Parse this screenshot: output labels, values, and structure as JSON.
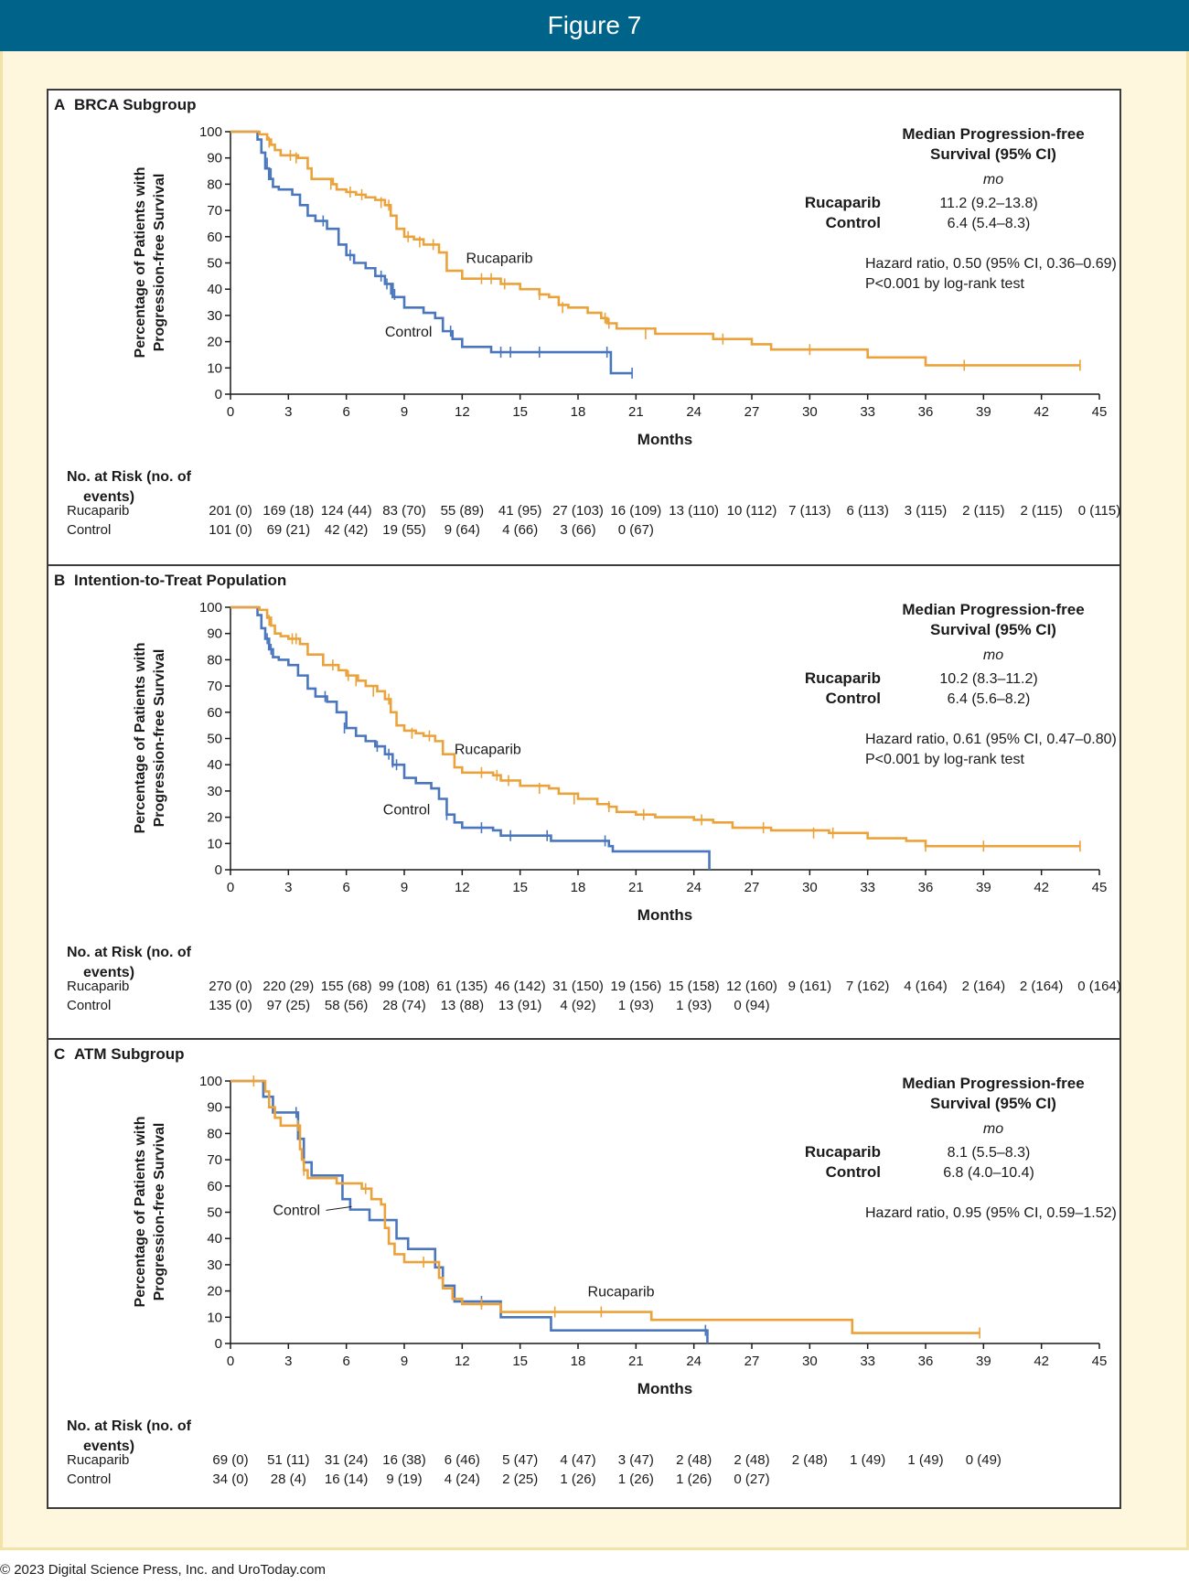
{
  "figure_title": "Figure 7",
  "footer": "© 2023 Digital Science Press, Inc. and UroToday.com",
  "colors": {
    "rucaparib": "#eca23a",
    "control": "#4a76be",
    "header": "#00638a",
    "frame": "#fff6de"
  },
  "shared": {
    "ylabel_line1": "Percentage of Patients with",
    "ylabel_line2": "Progression-free Survival",
    "xlabel": "Months",
    "risk_title_line1": "No. at Risk (no. of",
    "risk_title_line2": "events)",
    "row_rucaparib": "Rucaparib",
    "row_control": "Control",
    "median_title_line1": "Median Progression-free",
    "median_title_line2": "Survival (95% CI)",
    "median_unit": "mo"
  },
  "chart_data": [
    {
      "type": "line",
      "letter": "A",
      "title": "BRCA Subgroup",
      "xlabel": "Months",
      "ylabel": "Percentage of Patients with Progression-free Survival",
      "xlim": [
        0,
        45
      ],
      "ylim": [
        0,
        100
      ],
      "x_ticks": [
        0,
        3,
        6,
        9,
        12,
        15,
        18,
        21,
        24,
        27,
        30,
        33,
        36,
        39,
        42,
        45
      ],
      "y_ticks": [
        0,
        10,
        20,
        30,
        40,
        50,
        60,
        70,
        80,
        90,
        100
      ],
      "median_rucaparib": "11.2 (9.2–13.8)",
      "median_control": "6.4 (5.4–8.3)",
      "hazard": "Hazard ratio, 0.50 (95% CI, 0.36–0.69)",
      "pvalue": "P<0.001 by log-rank test",
      "series": [
        {
          "name": "Rucaparib",
          "label_pos": [
            12.2,
            50
          ],
          "x": [
            0,
            1.5,
            1.9,
            2.1,
            2.3,
            2.6,
            3.0,
            3.5,
            4.0,
            4.2,
            5.0,
            5.3,
            5.5,
            6.0,
            6.5,
            7.0,
            7.5,
            8.0,
            8.3,
            8.6,
            9.0,
            9.5,
            10.0,
            10.8,
            11.2,
            12.0,
            13.5,
            14.0,
            15.0,
            16.0,
            16.5,
            17.0,
            17.5,
            18.5,
            19.2,
            19.5,
            20.0,
            22.0,
            24.0,
            25.0,
            26.0,
            27.0,
            28.0,
            29.0,
            31.0,
            32.0,
            33.0,
            34.0,
            35.0,
            36.0,
            37.0,
            38.0,
            40.0,
            44.0
          ],
          "y": [
            100,
            99,
            97,
            95,
            93,
            91,
            91,
            90,
            86,
            82,
            82,
            80,
            78,
            77,
            76,
            75,
            74,
            72,
            68,
            63,
            60,
            59,
            57,
            54,
            47,
            44,
            44,
            42,
            40,
            38,
            37,
            34,
            33,
            31,
            29,
            27,
            25,
            23,
            23,
            21,
            21,
            19,
            17,
            17,
            17,
            17,
            14,
            14,
            14,
            11,
            11,
            11,
            11,
            11
          ],
          "censor_x": [
            2.0,
            3.1,
            3.4,
            5.2,
            6.2,
            6.8,
            7.8,
            8.2,
            9.2,
            9.8,
            10.5,
            13.0,
            13.5,
            14.2,
            16.0,
            17.2,
            19.4,
            19.6,
            21.5,
            25.5,
            30.0,
            38.0,
            44.0
          ],
          "censor_y": [
            96,
            91,
            90,
            80,
            77,
            76,
            73,
            72,
            60,
            58,
            57,
            44,
            44,
            42,
            38,
            33,
            29,
            27,
            23,
            21,
            17,
            11,
            11
          ],
          "at_risk": [
            "201 (0)",
            "169 (18)",
            "124 (44)",
            "83 (70)",
            "55 (89)",
            "41 (95)",
            "27 (103)",
            "16 (109)",
            "13 (110)",
            "10 (112)",
            "7 (113)",
            "6 (113)",
            "3 (115)",
            "2 (115)",
            "2 (115)",
            "0 (115)"
          ]
        },
        {
          "name": "Control",
          "label_pos": [
            8.0,
            22
          ],
          "x": [
            0,
            1.4,
            1.6,
            1.8,
            2.0,
            2.2,
            2.5,
            3.2,
            3.6,
            4.0,
            4.4,
            5.0,
            5.6,
            6.0,
            6.4,
            7.0,
            7.5,
            8.0,
            8.4,
            9.0,
            10.0,
            10.6,
            11.0,
            11.5,
            12.0,
            13.5,
            19.6,
            19.7,
            20.8
          ],
          "y": [
            100,
            97,
            92,
            86,
            82,
            79,
            78,
            76,
            72,
            68,
            66,
            63,
            57,
            53,
            50,
            48,
            45,
            42,
            37,
            33,
            31,
            29,
            24,
            21,
            18,
            16,
            16,
            8,
            8
          ],
          "censor_x": [
            1.9,
            2.1,
            4.8,
            6.2,
            7.8,
            8.1,
            8.3,
            8.5,
            11.4,
            14.0,
            14.5,
            16.0,
            19.5,
            20.8
          ],
          "censor_y": [
            88,
            84,
            66,
            53,
            45,
            42,
            40,
            38,
            24,
            16,
            16,
            16,
            16,
            8
          ],
          "at_risk": [
            "101 (0)",
            "69 (21)",
            "42 (42)",
            "19 (55)",
            "9 (64)",
            "4 (66)",
            "3 (66)",
            "0 (67)"
          ]
        }
      ]
    },
    {
      "type": "line",
      "letter": "B",
      "title": "Intention-to-Treat Population",
      "xlabel": "Months",
      "ylabel": "Percentage of Patients with Progression-free Survival",
      "xlim": [
        0,
        45
      ],
      "ylim": [
        0,
        100
      ],
      "x_ticks": [
        0,
        3,
        6,
        9,
        12,
        15,
        18,
        21,
        24,
        27,
        30,
        33,
        36,
        39,
        42,
        45
      ],
      "y_ticks": [
        0,
        10,
        20,
        30,
        40,
        50,
        60,
        70,
        80,
        90,
        100
      ],
      "median_rucaparib": "10.2 (8.3–11.2)",
      "median_control": "6.4 (5.6–8.2)",
      "hazard": "Hazard ratio, 0.61 (95% CI, 0.47–0.80)",
      "pvalue": "P<0.001 by log-rank test",
      "series": [
        {
          "name": "Rucaparib",
          "label_pos": [
            11.6,
            44
          ],
          "x": [
            0,
            1.5,
            1.9,
            2.1,
            2.3,
            2.6,
            3.0,
            3.6,
            4.0,
            4.8,
            5.2,
            5.6,
            6.0,
            6.6,
            7.0,
            7.6,
            8.0,
            8.3,
            8.6,
            9.0,
            9.6,
            10.0,
            10.6,
            11.0,
            11.6,
            12.0,
            13.6,
            14.0,
            15.0,
            16.5,
            17.0,
            18.0,
            19.0,
            19.6,
            20.0,
            21.0,
            22.0,
            24.0,
            25.0,
            26.0,
            28.0,
            31.0,
            33.0,
            35.0,
            36.0,
            38.0,
            44.0
          ],
          "y": [
            100,
            99,
            96,
            93,
            90,
            89,
            88,
            86,
            82,
            78,
            78,
            76,
            74,
            72,
            70,
            68,
            65,
            60,
            55,
            53,
            52,
            51,
            49,
            44,
            39,
            37,
            36,
            34,
            32,
            31,
            29,
            27,
            25,
            24,
            22,
            21,
            20,
            19,
            18,
            16,
            15,
            14,
            12,
            11,
            9,
            9,
            9
          ],
          "censor_x": [
            2.0,
            3.2,
            3.4,
            5.3,
            6.1,
            6.5,
            7.4,
            8.2,
            9.4,
            10.3,
            13.0,
            13.8,
            14.4,
            16.0,
            17.8,
            19.6,
            21.4,
            24.4,
            27.6,
            30.2,
            31.2,
            36.0,
            39.0,
            44.0
          ],
          "censor_y": [
            95,
            88,
            88,
            78,
            74,
            72,
            68,
            65,
            52,
            51,
            37,
            36,
            34,
            31,
            27,
            24,
            21,
            19,
            16,
            14,
            14,
            9,
            9,
            9
          ],
          "at_risk": [
            "270 (0)",
            "220 (29)",
            "155 (68)",
            "99 (108)",
            "61 (135)",
            "46 (142)",
            "31 (150)",
            "19 (156)",
            "15 (158)",
            "12 (160)",
            "9 (161)",
            "7 (162)",
            "4 (164)",
            "2 (164)",
            "2 (164)",
            "0 (164)"
          ]
        },
        {
          "name": "Control",
          "label_pos": [
            7.9,
            21
          ],
          "x": [
            0,
            1.4,
            1.6,
            1.8,
            2.0,
            2.2,
            2.5,
            3.0,
            3.5,
            4.0,
            4.4,
            5.0,
            5.5,
            6.0,
            6.5,
            7.0,
            7.5,
            8.0,
            8.4,
            9.0,
            9.6,
            10.4,
            10.8,
            11.2,
            11.6,
            12.0,
            13.6,
            14.0,
            16.6,
            19.6,
            19.8,
            24.8
          ],
          "y": [
            100,
            97,
            92,
            88,
            84,
            81,
            80,
            78,
            74,
            69,
            66,
            64,
            60,
            54,
            51,
            49,
            47,
            44,
            40,
            35,
            33,
            31,
            27,
            21,
            18,
            16,
            15,
            13,
            11,
            9,
            7,
            0
          ],
          "censor_x": [
            1.9,
            2.1,
            4.9,
            5.9,
            7.6,
            8.2,
            8.4,
            8.6,
            11.2,
            13.0,
            14.5,
            16.4,
            19.4
          ],
          "censor_y": [
            88,
            84,
            66,
            54,
            47,
            44,
            41,
            40,
            21,
            16,
            13,
            13,
            11
          ],
          "at_risk": [
            "135 (0)",
            "97 (25)",
            "58 (56)",
            "28 (74)",
            "13 (88)",
            "13 (91)",
            "4 (92)",
            "1 (93)",
            "1 (93)",
            "0 (94)"
          ]
        }
      ]
    },
    {
      "type": "line",
      "letter": "C",
      "title": "ATM Subgroup",
      "xlabel": "Months",
      "ylabel": "Percentage of Patients with Progression-free Survival",
      "xlim": [
        0,
        45
      ],
      "ylim": [
        0,
        100
      ],
      "x_ticks": [
        0,
        3,
        6,
        9,
        12,
        15,
        18,
        21,
        24,
        27,
        30,
        33,
        36,
        39,
        42,
        45
      ],
      "y_ticks": [
        0,
        10,
        20,
        30,
        40,
        50,
        60,
        70,
        80,
        90,
        100
      ],
      "median_rucaparib": "8.1 (5.5–8.3)",
      "median_control": "6.8 (4.0–10.4)",
      "hazard": "Hazard ratio, 0.95 (95% CI, 0.59–1.52)",
      "pvalue": "",
      "series": [
        {
          "name": "Rucaparib",
          "label_pos": [
            18.5,
            18
          ],
          "x": [
            0,
            1.8,
            2.0,
            2.3,
            2.6,
            3.0,
            3.6,
            3.7,
            3.8,
            4.0,
            5.5,
            6.8,
            7.3,
            7.8,
            8.0,
            8.2,
            8.5,
            9.0,
            10.4,
            10.8,
            11.0,
            11.5,
            12.0,
            14.0,
            21.8,
            32.2,
            38.8
          ],
          "y": [
            100,
            96,
            90,
            86,
            83,
            83,
            74,
            70,
            66,
            63,
            61,
            59,
            55,
            53,
            44,
            38,
            34,
            31,
            31,
            25,
            21,
            17,
            15,
            12,
            9,
            4,
            4
          ],
          "censor_x": [
            1.2,
            3.5,
            3.8,
            7.0,
            10.0,
            13.0,
            16.8,
            19.2,
            38.8
          ],
          "censor_y": [
            100,
            83,
            66,
            59,
            31,
            15,
            12,
            12,
            4
          ],
          "at_risk": [
            "69 (0)",
            "51 (11)",
            "31 (24)",
            "16 (38)",
            "6 (46)",
            "5 (47)",
            "4 (47)",
            "3 (47)",
            "2 (48)",
            "2 (48)",
            "2 (48)",
            "1 (49)",
            "1 (49)",
            "0 (49)"
          ]
        },
        {
          "name": "Control",
          "label_pos": [
            2.2,
            49
          ],
          "x": [
            0,
            1.7,
            2.2,
            2.8,
            3.5,
            3.8,
            4.2,
            5.0,
            5.8,
            6.2,
            7.2,
            8.0,
            8.6,
            9.2,
            10.6,
            11.0,
            11.6,
            14.0,
            16.6,
            24.7
          ],
          "y": [
            100,
            94,
            88,
            88,
            78,
            69,
            64,
            64,
            55,
            51,
            47,
            47,
            40,
            36,
            29,
            22,
            16,
            10,
            5,
            0
          ],
          "censor_x": [
            3.4,
            13.0,
            24.6
          ],
          "censor_y": [
            88,
            16,
            5
          ],
          "at_risk": [
            "34 (0)",
            "28 (4)",
            "16 (14)",
            "9 (19)",
            "4 (24)",
            "2 (25)",
            "1 (26)",
            "1 (26)",
            "1 (26)",
            "0 (27)"
          ]
        }
      ]
    }
  ]
}
